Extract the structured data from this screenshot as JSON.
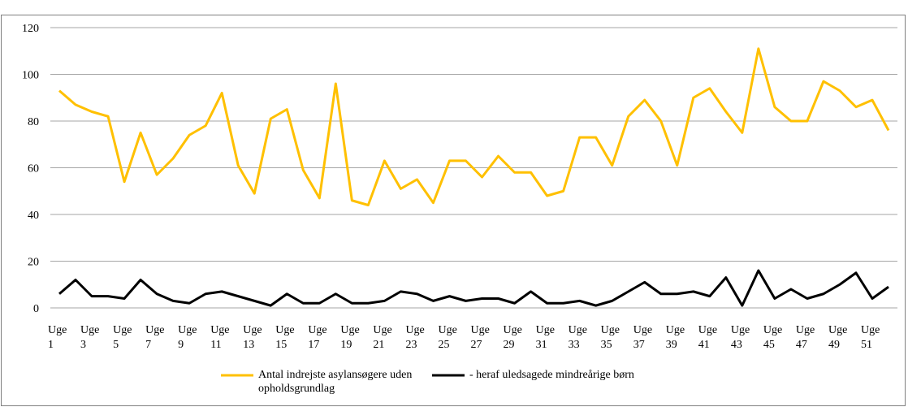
{
  "chart_data": {
    "type": "line",
    "categories": [
      "Uge 1",
      null,
      "Uge 3",
      null,
      "Uge 5",
      null,
      "Uge 7",
      null,
      "Uge 9",
      null,
      "Uge 11",
      null,
      "Uge 13",
      null,
      "Uge 15",
      null,
      "Uge 17",
      null,
      "Uge 19",
      null,
      "Uge 21",
      null,
      "Uge 23",
      null,
      "Uge 25",
      null,
      "Uge 27",
      null,
      "Uge 29",
      null,
      "Uge 31",
      null,
      "Uge 33",
      null,
      "Uge 35",
      null,
      "Uge 37",
      null,
      "Uge 39",
      null,
      "Uge 41",
      null,
      "Uge 43",
      null,
      "Uge 45",
      null,
      "Uge 47",
      null,
      "Uge 49",
      null,
      "Uge 51",
      null
    ],
    "series": [
      {
        "name": "Antal indrejste asylansøgere uden opholdsgrundlag",
        "color": "#ffc000",
        "values": [
          93,
          87,
          84,
          82,
          54,
          75,
          57,
          64,
          74,
          78,
          92,
          61,
          49,
          81,
          85,
          59,
          47,
          96,
          46,
          44,
          63,
          51,
          55,
          45,
          63,
          63,
          56,
          65,
          58,
          58,
          48,
          50,
          73,
          73,
          61,
          82,
          89,
          80,
          61,
          90,
          94,
          84,
          75,
          111,
          86,
          80,
          80,
          97,
          93,
          86,
          89,
          76
        ]
      },
      {
        "name": "- heraf uledsagede mindreårige børn",
        "color": "#000000",
        "values": [
          6,
          12,
          5,
          5,
          4,
          12,
          6,
          3,
          2,
          6,
          7,
          5,
          3,
          1,
          6,
          2,
          2,
          6,
          2,
          2,
          3,
          7,
          6,
          3,
          5,
          3,
          4,
          4,
          2,
          7,
          2,
          2,
          3,
          1,
          3,
          7,
          11,
          6,
          6,
          7,
          5,
          13,
          1,
          16,
          4,
          8,
          4,
          6,
          10,
          15,
          4,
          9
        ]
      }
    ],
    "ylim": [
      0,
      120
    ],
    "yticks": [
      0,
      20,
      40,
      60,
      80,
      100,
      120
    ],
    "grid": true,
    "legend": "bottom"
  }
}
